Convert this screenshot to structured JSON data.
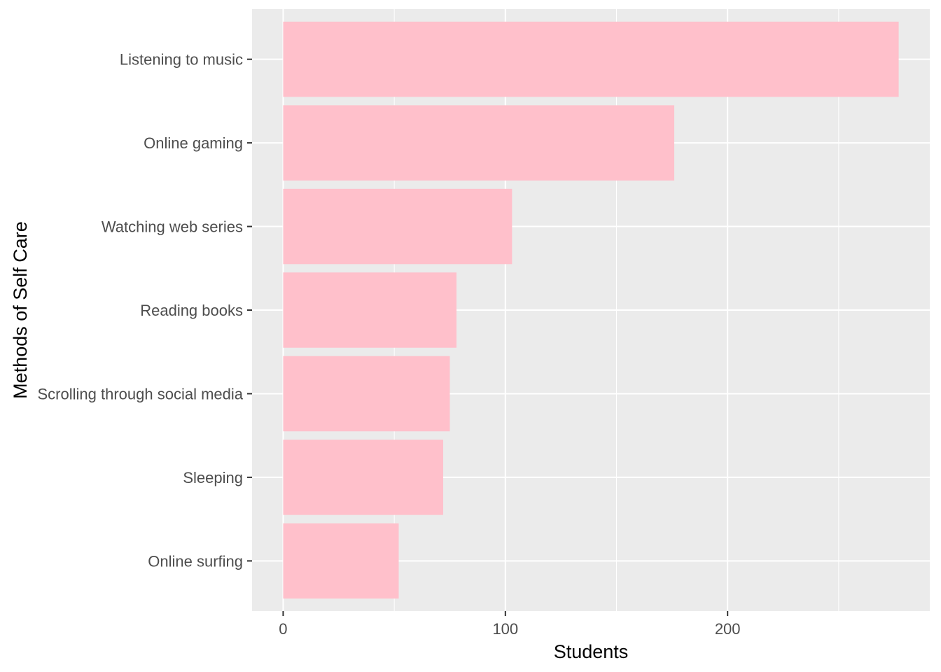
{
  "chart_data": {
    "type": "bar",
    "orientation": "horizontal",
    "categories": [
      "Listening to music",
      "Online gaming",
      "Watching web series",
      "Reading books",
      "Scrolling through social media",
      "Sleeping",
      "Online surfing"
    ],
    "values": [
      277,
      176,
      103,
      78,
      75,
      72,
      52
    ],
    "xlabel": "Students",
    "ylabel": "Methods of Self Care",
    "xlim": [
      -14,
      291
    ],
    "x_ticks": [
      0,
      100,
      200
    ],
    "x_tick_labels": [
      "0",
      "100",
      "200"
    ],
    "grid": true,
    "legend": "none",
    "colors": {
      "bar_fill": "#ffc0cb",
      "panel_background": "#ebebeb",
      "grid_line": "#ffffff",
      "tick_label": "#4d4d4d",
      "axis_title": "#000000",
      "tick_mark": "#333333"
    }
  }
}
